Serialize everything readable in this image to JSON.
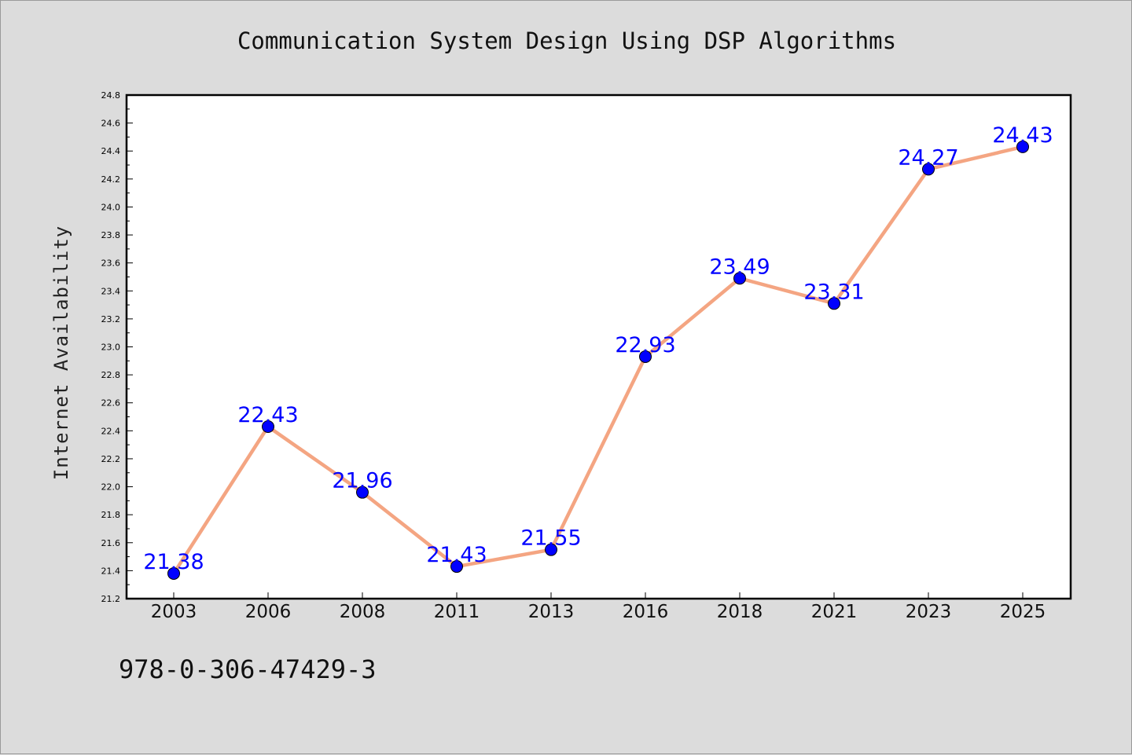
{
  "chart_data": {
    "type": "line",
    "title": "Communication System Design Using DSP Algorithms",
    "xlabel": "",
    "ylabel": "Internet Availability",
    "categories": [
      "2003",
      "2006",
      "2008",
      "2011",
      "2013",
      "2016",
      "2018",
      "2021",
      "2023",
      "2025"
    ],
    "series": [
      {
        "values": [
          21.38,
          22.43,
          21.96,
          21.43,
          21.55,
          22.93,
          23.49,
          23.31,
          24.27,
          24.43
        ],
        "labels": [
          "21.38",
          "22.43",
          "21.96",
          "21.43",
          "21.55",
          "22.93",
          "23.49",
          "23.31",
          "24.27",
          "24.43"
        ]
      }
    ],
    "ylim": [
      21.2,
      24.8
    ],
    "yticks": [
      "21.2",
      "21.4",
      "21.6",
      "21.8",
      "22.0",
      "22.2",
      "22.4",
      "22.6",
      "22.8",
      "23.0",
      "23.2",
      "23.4",
      "23.6",
      "23.8",
      "24.0",
      "24.2",
      "24.4",
      "24.6",
      "24.8"
    ],
    "grid": false,
    "colors": {
      "line": "#f4a582",
      "marker": "#0000ff",
      "label": "#0000ff"
    }
  },
  "footer": {
    "isbn": "978-0-306-47429-3"
  }
}
